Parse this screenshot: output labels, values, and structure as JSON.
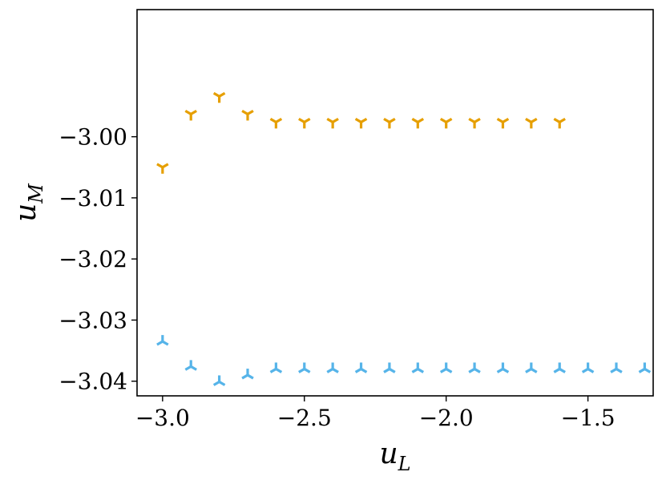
{
  "chart_data": {
    "type": "scatter",
    "xlabel": "u",
    "xlabel_sub": "L",
    "ylabel": "u",
    "ylabel_sub": "M",
    "xlim": [
      -3.09,
      -1.27
    ],
    "ylim": [
      -3.0424,
      -2.9792
    ],
    "xticks": [
      -3.0,
      -2.5,
      -2.0,
      -1.5
    ],
    "xtick_labels": [
      "−3.0",
      "−2.5",
      "−2.0",
      "−1.5"
    ],
    "yticks": [
      -3.0,
      -3.01,
      -3.02,
      -3.03,
      -3.04
    ],
    "ytick_labels": [
      "−3.00",
      "−3.01",
      "−3.02",
      "−3.03",
      "−3.04"
    ],
    "grid": false,
    "series": [
      {
        "color": "#E69F00",
        "marker": "tri_down",
        "x": [
          -3.0,
          -2.9,
          -2.8,
          -2.7,
          -2.6,
          -2.5,
          -2.4,
          -2.3,
          -2.2,
          -2.1,
          -2.0,
          -1.9,
          -1.8,
          -1.7,
          -1.6
        ],
        "y": [
          -3.005,
          -2.9963,
          -2.9934,
          -2.9963,
          -2.9976,
          -2.9976,
          -2.9976,
          -2.9976,
          -2.9976,
          -2.9976,
          -2.9976,
          -2.9976,
          -2.9976,
          -2.9976,
          -2.9976
        ]
      },
      {
        "color": "#56B4E9",
        "marker": "tri_up",
        "x": [
          -3.0,
          -2.9,
          -2.8,
          -2.7,
          -2.6,
          -2.5,
          -2.4,
          -2.3,
          -2.2,
          -2.1,
          -2.0,
          -1.9,
          -1.8,
          -1.7,
          -1.6,
          -1.5,
          -1.4,
          -1.3
        ],
        "y": [
          -3.0335,
          -3.0376,
          -3.0401,
          -3.039,
          -3.038,
          -3.038,
          -3.038,
          -3.038,
          -3.038,
          -3.038,
          -3.038,
          -3.038,
          -3.038,
          -3.038,
          -3.038,
          -3.038,
          -3.038,
          -3.038
        ]
      }
    ]
  }
}
